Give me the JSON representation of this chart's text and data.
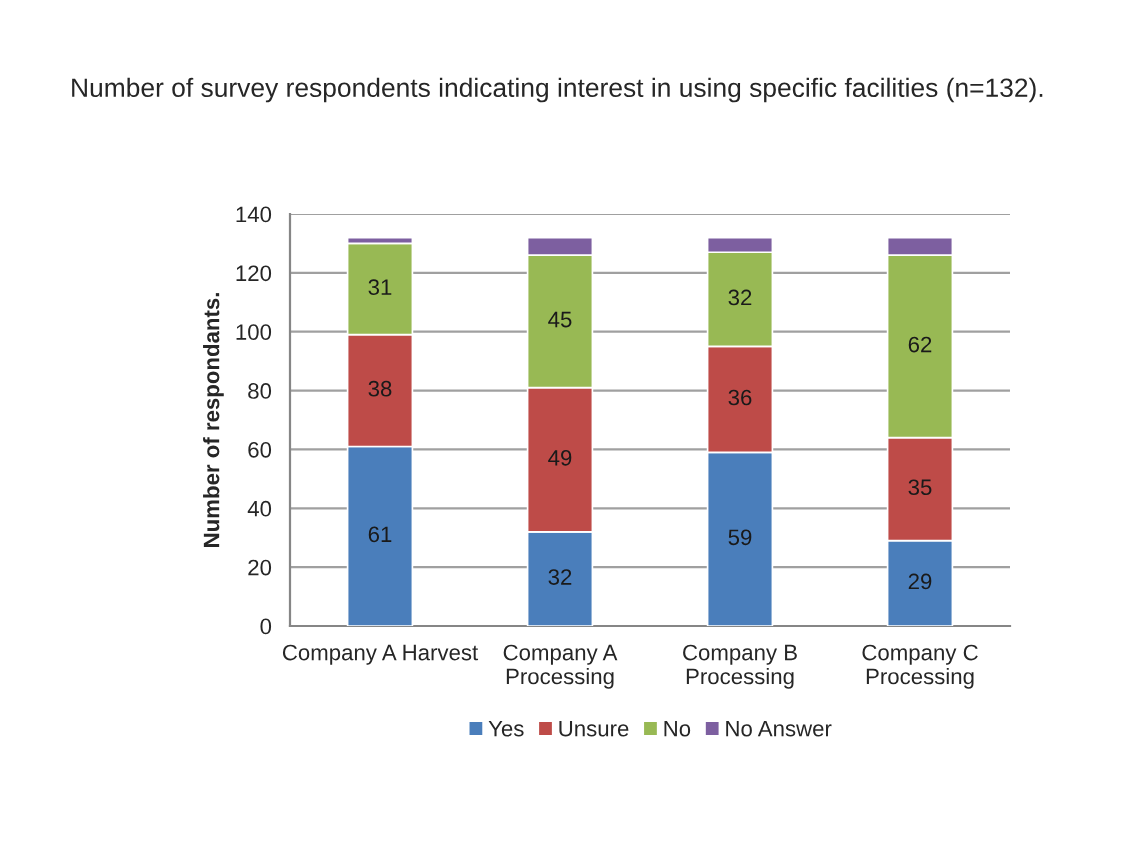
{
  "chart_data": {
    "type": "bar",
    "title": "Number of survey respondents indicating interest in using specific facilities (n=132).",
    "ylabel": "Number of respondants.",
    "categories": [
      "Company A Harvest",
      "Company A\nProcessing",
      "Company B\nProcessing",
      "Company C\nProcessing"
    ],
    "stacked": true,
    "ylim": [
      0,
      140
    ],
    "yticks": [
      0,
      20,
      40,
      60,
      80,
      100,
      120,
      140
    ],
    "grid": "y",
    "legend": "bottom",
    "series": [
      {
        "name": "Yes",
        "color": "#4a7ebb",
        "values": [
          61,
          32,
          59,
          29
        ],
        "value_labels": [
          "61",
          "32",
          "59",
          "29"
        ]
      },
      {
        "name": "Unsure",
        "color": "#be4b48",
        "values": [
          38,
          49,
          36,
          35
        ],
        "value_labels": [
          "38",
          "49",
          "36",
          "35"
        ]
      },
      {
        "name": "No",
        "color": "#98b954",
        "values": [
          31,
          45,
          32,
          62
        ],
        "value_labels": [
          "31",
          "45",
          "32",
          "62"
        ]
      },
      {
        "name": "No Answer",
        "color": "#7d5fa0",
        "values": [
          2,
          6,
          5,
          6
        ],
        "value_labels": [
          null,
          null,
          null,
          null
        ]
      }
    ]
  }
}
